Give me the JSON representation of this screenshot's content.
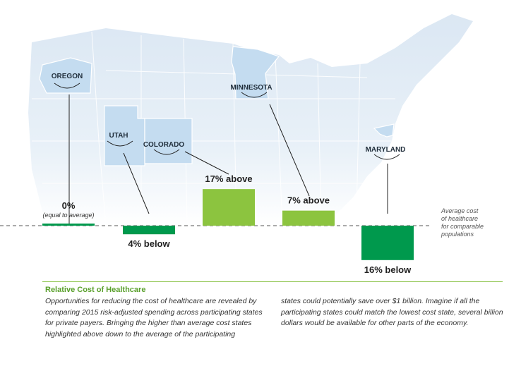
{
  "chart_data": {
    "type": "bar",
    "title": "Relative Cost of Healthcare",
    "baseline_label": [
      "Average cost",
      "of healthcare",
      "for comparable",
      "populations"
    ],
    "categories": [
      "OREGON",
      "UTAH",
      "COLORADO",
      "MINNESOTA",
      "MARYLAND"
    ],
    "values": [
      0,
      -4,
      17,
      7,
      -16
    ],
    "value_labels": [
      "0%",
      "4% below",
      "17% above",
      "7% above",
      "16% below"
    ],
    "sub_labels": [
      "(equal to average)",
      "",
      "",
      "",
      ""
    ],
    "ylim": [
      -20,
      20
    ],
    "colors": {
      "above": "#8cc43f",
      "below": "#00994d",
      "zero": "#00994d"
    }
  },
  "caption": {
    "title": "Relative Cost of Healthcare",
    "left": "Opportunities for reducing the cost of healthcare are revealed by comparing 2015 risk-adjusted spending across participating states for private payers. Bringing the higher than average cost states highlighted above down to the average of the participating",
    "right": "states could potentially save over $1 billion. Imagine if all the participating states could match the lowest cost state, several billion dollars would be available for other parts of the economy."
  },
  "colors": {
    "map_light": "#e6eef6",
    "map_state": "#c4dcf0",
    "map_border": "#ffffff",
    "accent": "#5aa02c"
  }
}
